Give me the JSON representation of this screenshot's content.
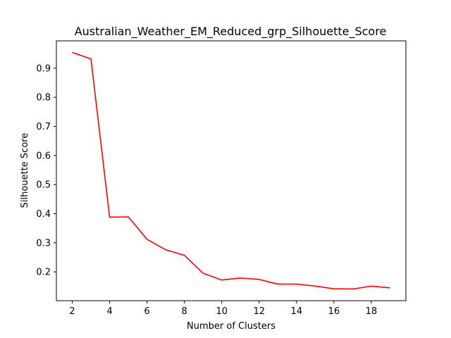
{
  "chart_data": {
    "type": "line",
    "title": "Australian_Weather_EM_Reduced_grp_Silhouette_Score",
    "xlabel": "Number of Clusters",
    "ylabel": "Silhouette Score",
    "xlim": [
      1.15,
      19.85
    ],
    "ylim": [
      0.101,
      0.994
    ],
    "xticks": [
      2,
      4,
      6,
      8,
      10,
      12,
      14,
      16,
      18
    ],
    "yticks": [
      0.2,
      0.3,
      0.4,
      0.5,
      0.6,
      0.7,
      0.8,
      0.9
    ],
    "grid": false,
    "series": [
      {
        "color": "#ff0000",
        "x": [
          2,
          3,
          4,
          5,
          6,
          7,
          8,
          9,
          10,
          11,
          12,
          13,
          14,
          15,
          16,
          17,
          18,
          19
        ],
        "y": [
          0.954,
          0.932,
          0.388,
          0.389,
          0.312,
          0.276,
          0.257,
          0.195,
          0.172,
          0.179,
          0.174,
          0.158,
          0.158,
          0.151,
          0.142,
          0.141,
          0.151,
          0.145
        ]
      }
    ]
  }
}
